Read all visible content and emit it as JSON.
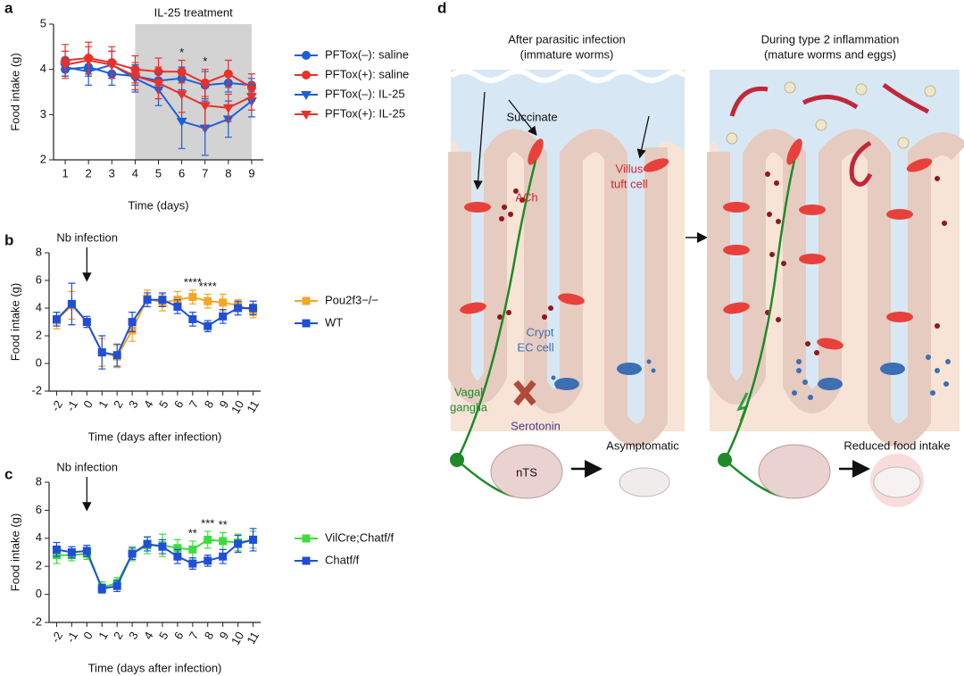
{
  "chart_data": [
    {
      "type": "line",
      "label": "a",
      "xlabel": "Time (days)",
      "ylabel": "Food intake (g)",
      "x": [
        1,
        2,
        3,
        4,
        5,
        6,
        7,
        8,
        9
      ],
      "xlim": [
        0.5,
        9.5
      ],
      "xticks": [
        1,
        2,
        3,
        4,
        5,
        6,
        7,
        8,
        9
      ],
      "ylim": [
        2,
        5
      ],
      "yticks": [
        2,
        3,
        4,
        5
      ],
      "shade": {
        "xlim": [
          4,
          9
        ],
        "label": "IL-25 treatment",
        "color": "#d3d3d3"
      },
      "annotations": [
        {
          "x": 6,
          "text": "*"
        },
        {
          "x": 7,
          "text": "*"
        }
      ],
      "series": [
        {
          "name": "PFTox(–): saline",
          "color": "#1f5fd6",
          "marker": "circle",
          "values": [
            4.0,
            4.05,
            3.9,
            3.85,
            3.75,
            3.8,
            3.65,
            3.7,
            3.65
          ],
          "errors": [
            0.15,
            0.2,
            0.25,
            0.2,
            0.2,
            0.25,
            0.3,
            0.2,
            0.15
          ]
        },
        {
          "name": "PFTox(+): saline",
          "color": "#e8312a",
          "marker": "circle",
          "values": [
            4.2,
            4.25,
            4.15,
            4.0,
            3.95,
            3.95,
            3.7,
            3.9,
            3.6
          ],
          "errors": [
            0.35,
            0.35,
            0.35,
            0.3,
            0.3,
            0.25,
            0.3,
            0.3,
            0.3
          ]
        },
        {
          "name": "PFTox(–): IL-25",
          "color": "#1f5fd6",
          "marker": "triangle",
          "values": [
            4.05,
            3.95,
            4.1,
            3.8,
            3.55,
            2.85,
            2.7,
            2.9,
            3.3
          ],
          "errors": [
            0.2,
            0.3,
            0.3,
            0.3,
            0.35,
            0.6,
            0.6,
            0.4,
            0.35
          ]
        },
        {
          "name": "PFTox(+): IL-25",
          "color": "#e8312a",
          "marker": "triangle",
          "values": [
            4.1,
            4.2,
            4.1,
            3.85,
            3.7,
            3.45,
            3.2,
            3.15,
            3.4
          ],
          "errors": [
            0.3,
            0.3,
            0.3,
            0.3,
            0.35,
            0.4,
            0.5,
            0.3,
            0.3
          ]
        }
      ]
    },
    {
      "type": "line",
      "label": "b",
      "xlabel": "Time (days after infection)",
      "ylabel": "Food intake (g)",
      "x": [
        -2,
        -1,
        0,
        1,
        2,
        3,
        4,
        5,
        6,
        7,
        8,
        9,
        10,
        11
      ],
      "xlim": [
        -2.5,
        11.5
      ],
      "xticks": [
        -2,
        -1,
        0,
        1,
        2,
        3,
        4,
        5,
        6,
        7,
        8,
        9,
        10,
        11
      ],
      "ylim": [
        -2,
        8
      ],
      "yticks": [
        -2,
        0,
        2,
        4,
        6,
        8
      ],
      "arrow_annotation": {
        "x": 0,
        "text": "Nb infection"
      },
      "annotations": [
        {
          "x": 7,
          "text": "****"
        },
        {
          "x": 8,
          "text": "****"
        }
      ],
      "series": [
        {
          "name": "Pou2f3−/−",
          "color": "#f5a623",
          "marker": "square",
          "values": [
            3.1,
            4.2,
            3.0,
            0.8,
            0.5,
            2.4,
            4.7,
            4.4,
            4.6,
            4.8,
            4.5,
            4.4,
            4.2,
            3.8
          ],
          "errors": [
            0.6,
            1.0,
            0.4,
            1.0,
            0.8,
            0.8,
            0.6,
            0.6,
            0.6,
            0.5,
            0.5,
            0.6,
            0.4,
            0.5
          ]
        },
        {
          "name": "WT",
          "color": "#1f4fd6",
          "marker": "square",
          "values": [
            3.2,
            4.3,
            3.0,
            0.8,
            0.6,
            3.0,
            4.6,
            4.6,
            4.1,
            3.2,
            2.7,
            3.4,
            4.0,
            4.0
          ],
          "errors": [
            0.5,
            1.5,
            0.4,
            1.2,
            0.8,
            0.7,
            0.5,
            0.5,
            0.5,
            0.5,
            0.4,
            0.5,
            0.5,
            0.5
          ]
        }
      ]
    },
    {
      "type": "line",
      "label": "c",
      "xlabel": "Time (days after infection)",
      "ylabel": "Food intake (g)",
      "x": [
        -2,
        -1,
        0,
        1,
        2,
        3,
        4,
        5,
        6,
        7,
        8,
        9,
        10,
        11
      ],
      "xlim": [
        -2.5,
        11.5
      ],
      "xticks": [
        -2,
        -1,
        0,
        1,
        2,
        3,
        4,
        5,
        6,
        7,
        8,
        9,
        10,
        11
      ],
      "ylim": [
        -2,
        8
      ],
      "yticks": [
        -2,
        0,
        2,
        4,
        6,
        8
      ],
      "arrow_annotation": {
        "x": 0,
        "text": "Nb infection"
      },
      "annotations": [
        {
          "x": 7,
          "text": "**"
        },
        {
          "x": 8,
          "text": "***"
        },
        {
          "x": 9,
          "text": "**"
        }
      ],
      "series": [
        {
          "name": "VilCre;Chatf/f",
          "color": "#3ddc3d",
          "marker": "square",
          "values": [
            2.8,
            2.8,
            2.9,
            0.5,
            0.8,
            2.9,
            3.5,
            3.5,
            3.3,
            3.2,
            3.9,
            3.8,
            3.7,
            3.9
          ],
          "errors": [
            0.6,
            0.4,
            0.4,
            0.4,
            0.4,
            0.5,
            0.6,
            0.8,
            0.6,
            0.6,
            0.6,
            0.6,
            0.6,
            0.6
          ]
        },
        {
          "name": "Chatf/f",
          "color": "#1f4fd6",
          "marker": "square",
          "values": [
            3.2,
            3.0,
            3.1,
            0.4,
            0.6,
            2.9,
            3.6,
            3.4,
            2.7,
            2.2,
            2.4,
            2.7,
            3.6,
            3.9
          ],
          "errors": [
            0.5,
            0.4,
            0.4,
            0.3,
            0.4,
            0.4,
            0.5,
            0.5,
            0.5,
            0.4,
            0.4,
            0.5,
            0.6,
            0.8
          ]
        }
      ]
    }
  ],
  "diagram": {
    "label": "d",
    "left_title": [
      "After parasitic infection",
      "(immature worms)"
    ],
    "right_title": [
      "During type 2 inflammation",
      "(mature worms and eggs)"
    ],
    "succinate": "Succinate",
    "tuft": [
      "Villus",
      "tuft cell"
    ],
    "ach": "ACh",
    "ec": [
      "Crypt",
      "EC cell"
    ],
    "vagal": [
      "Vagal",
      "ganglia"
    ],
    "serotonin": "Serotonin",
    "nts": "nTS",
    "asymptomatic": "Asymptomatic",
    "reduced": "Reduced food intake"
  }
}
